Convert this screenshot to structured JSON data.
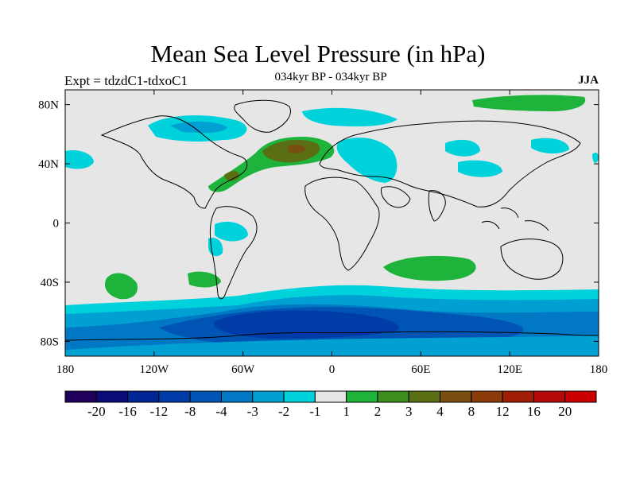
{
  "title": "Mean Sea Level Pressure (in hPa)",
  "left_subtitle": "Expt = tdzdC1-tdxoC1",
  "center_subtitle": "034kyr BP - 034kyr BP",
  "right_subtitle": "JJA",
  "map": {
    "projection": "cylindrical equidistant",
    "background_color": "#e6e6e6",
    "coastline_color": "#000000",
    "x_ticks": [
      "180",
      "120W",
      "60W",
      "0",
      "60E",
      "120E",
      "180"
    ],
    "y_ticks": [
      "80N",
      "40N",
      "0",
      "40S",
      "80S"
    ],
    "features": [
      {
        "name": "south-ocean-low-belt",
        "level": "-1",
        "desc": "circumpolar negative anomaly belt"
      },
      {
        "name": "south-ocean-deep-low",
        "level": "-8",
        "desc": "deepest negative anomaly south of South America / Atlantic sector"
      },
      {
        "name": "north-atlantic-high",
        "level": "2",
        "desc": "positive anomaly band across North Atlantic"
      },
      {
        "name": "arctic-north-pacific-high",
        "level": "1",
        "desc": "positive anomaly near 80N east Siberia"
      },
      {
        "name": "south-indian-high",
        "level": "1",
        "desc": "positive anomaly south Indian Ocean"
      },
      {
        "name": "south-pacific-high",
        "level": "1",
        "desc": "positive anomaly south-east Pacific"
      }
    ]
  },
  "colorbar": {
    "colors": [
      "#20005a",
      "#0a0a78",
      "#002696",
      "#003ca8",
      "#0055b4",
      "#0078c3",
      "#00a0d2",
      "#00d2dc",
      "#e6e6e6",
      "#1eb43c",
      "#3c8c1e",
      "#5a6e14",
      "#784f0f",
      "#8c3c0a",
      "#a01e05",
      "#b40a0a",
      "#cd0000"
    ],
    "labels": [
      "-20",
      "-16",
      "-12",
      "-8",
      "-4",
      "-3",
      "-2",
      "-1",
      "1",
      "2",
      "3",
      "4",
      "8",
      "12",
      "16",
      "20"
    ]
  }
}
